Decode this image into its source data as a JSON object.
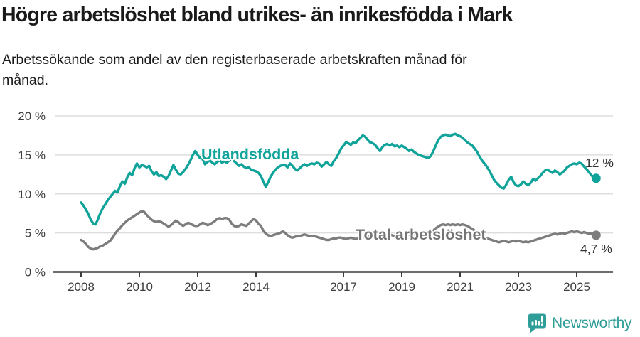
{
  "colors": {
    "teal": "#10A39A",
    "gray": "#7D7D7D",
    "axis": "#3D3D3D",
    "grid": "#DEDEDE",
    "title_text": "#1A1A1A",
    "annotation_text": "#333333",
    "logo_teal": "#2F9E98",
    "background": "#FFFFFF"
  },
  "chart_data": {
    "type": "line",
    "title": "Högre arbetslöshet bland utrikes- än inrikesfödda i Mark",
    "subtitle": "Arbetssökande som andel av den registerbaserade arbetskraften månad för månad.",
    "xlabel": "",
    "ylabel": "",
    "unit": "%",
    "grid": true,
    "ylim": [
      0,
      20
    ],
    "xlim_years": [
      2007.1,
      2026.3
    ],
    "y_ticks": [
      {
        "value": 0,
        "label": "0 %"
      },
      {
        "value": 5,
        "label": "5 %"
      },
      {
        "value": 10,
        "label": "10 %"
      },
      {
        "value": 15,
        "label": "15 %"
      },
      {
        "value": 20,
        "label": "20 %"
      }
    ],
    "x_ticks": [
      {
        "value": 2008,
        "label": "2008"
      },
      {
        "value": 2010,
        "label": "2010"
      },
      {
        "value": 2012,
        "label": "2012"
      },
      {
        "value": 2014,
        "label": "2014"
      },
      {
        "value": 2017,
        "label": "2017"
      },
      {
        "value": 2019,
        "label": "2019"
      },
      {
        "value": 2021,
        "label": "2021"
      },
      {
        "value": 2023,
        "label": "2023"
      },
      {
        "value": 2025,
        "label": "2025"
      }
    ],
    "series": [
      {
        "id": "utlandsfodda",
        "name": "Utlandsfödda",
        "color": "#10A39A",
        "start_year": 2008,
        "points_per_year": 12,
        "end_label": "12 %",
        "end_value": 12.0,
        "values": [
          8.9,
          8.5,
          8.0,
          7.4,
          6.7,
          6.2,
          6.1,
          6.8,
          7.6,
          8.2,
          8.7,
          9.2,
          9.6,
          10.0,
          10.4,
          10.2,
          11.0,
          11.6,
          11.3,
          12.1,
          12.7,
          12.4,
          13.3,
          13.9,
          13.4,
          13.7,
          13.6,
          13.4,
          13.6,
          12.9,
          12.5,
          12.8,
          12.3,
          12.4,
          12.2,
          11.9,
          12.3,
          13.0,
          13.7,
          13.1,
          12.6,
          12.5,
          12.8,
          13.2,
          13.7,
          14.3,
          15.0,
          15.5,
          15.0,
          14.6,
          14.5,
          13.8,
          14.1,
          14.3,
          14.0,
          13.8,
          14.1,
          14.3,
          14.0,
          14.2,
          14.0,
          14.3,
          14.5,
          14.2,
          13.9,
          13.6,
          13.8,
          13.5,
          13.3,
          13.4,
          13.1,
          13.0,
          12.9,
          12.7,
          12.3,
          11.6,
          10.9,
          11.5,
          12.2,
          12.7,
          13.1,
          13.4,
          13.6,
          13.7,
          13.7,
          13.4,
          13.9,
          13.6,
          13.2,
          13.0,
          13.3,
          13.6,
          13.8,
          13.6,
          13.8,
          13.9,
          13.8,
          14.0,
          13.9,
          13.5,
          13.8,
          14.1,
          13.8,
          13.6,
          14.2,
          14.6,
          15.2,
          15.8,
          16.2,
          16.6,
          16.5,
          16.3,
          16.6,
          16.5,
          16.9,
          17.2,
          17.5,
          17.3,
          16.9,
          16.6,
          16.5,
          16.3,
          15.9,
          15.5,
          16.0,
          16.3,
          16.4,
          16.2,
          16.4,
          16.1,
          16.2,
          16.0,
          16.2,
          16.0,
          15.8,
          15.5,
          15.7,
          15.4,
          15.2,
          15.0,
          14.9,
          14.8,
          14.7,
          14.6,
          14.9,
          15.5,
          16.2,
          16.9,
          17.3,
          17.5,
          17.6,
          17.5,
          17.4,
          17.6,
          17.7,
          17.5,
          17.4,
          17.2,
          16.9,
          16.6,
          16.4,
          16.2,
          15.8,
          15.4,
          14.8,
          14.3,
          13.9,
          13.5,
          13.0,
          12.4,
          11.8,
          11.4,
          11.1,
          10.8,
          10.7,
          11.2,
          11.8,
          12.2,
          11.5,
          11.1,
          11.0,
          11.2,
          11.6,
          11.3,
          11.1,
          11.4,
          11.9,
          11.7,
          12.0,
          12.3,
          12.7,
          13.0,
          13.1,
          12.9,
          12.7,
          13.0,
          12.8,
          12.5,
          12.7,
          13.0,
          13.4,
          13.6,
          13.8,
          13.9,
          13.8,
          14.0,
          13.9,
          13.5,
          13.2,
          12.8,
          12.4,
          12.1,
          12.0
        ]
      },
      {
        "id": "total",
        "name": "Total arbetslöshet",
        "color": "#7D7D7D",
        "start_year": 2008,
        "points_per_year": 12,
        "end_label": "4,7 %",
        "end_value": 4.7,
        "values": [
          4.1,
          3.9,
          3.6,
          3.2,
          3.0,
          2.9,
          3.0,
          3.1,
          3.3,
          3.4,
          3.6,
          3.8,
          4.0,
          4.4,
          4.9,
          5.3,
          5.6,
          6.0,
          6.3,
          6.6,
          6.8,
          7.0,
          7.2,
          7.4,
          7.6,
          7.8,
          7.7,
          7.3,
          7.0,
          6.7,
          6.5,
          6.4,
          6.5,
          6.4,
          6.2,
          6.0,
          5.8,
          6.0,
          6.3,
          6.6,
          6.4,
          6.1,
          5.9,
          6.1,
          6.3,
          6.2,
          6.0,
          5.9,
          5.9,
          6.1,
          6.3,
          6.2,
          6.0,
          6.1,
          6.3,
          6.5,
          6.8,
          6.9,
          6.8,
          6.9,
          6.9,
          6.7,
          6.2,
          5.9,
          5.8,
          5.9,
          6.1,
          6.0,
          5.9,
          6.2,
          6.5,
          6.8,
          6.6,
          6.2,
          5.9,
          5.3,
          4.9,
          4.7,
          4.6,
          4.7,
          4.8,
          4.9,
          5.0,
          5.2,
          5.0,
          4.7,
          4.5,
          4.4,
          4.5,
          4.6,
          4.6,
          4.7,
          4.8,
          4.7,
          4.6,
          4.6,
          4.6,
          4.5,
          4.4,
          4.3,
          4.2,
          4.1,
          4.1,
          4.2,
          4.3,
          4.3,
          4.4,
          4.4,
          4.3,
          4.2,
          4.3,
          4.4,
          4.3,
          4.2,
          4.3,
          4.4,
          4.5,
          4.4,
          4.5,
          4.6,
          4.5,
          4.6,
          4.7,
          4.6,
          4.5,
          4.6,
          4.7,
          4.8,
          4.7,
          4.6,
          4.7,
          4.8,
          4.7,
          4.8,
          4.9,
          4.8,
          4.7,
          4.8,
          4.9,
          4.8,
          4.7,
          4.8,
          4.9,
          5.0,
          5.1,
          5.3,
          5.6,
          5.8,
          6.0,
          6.1,
          6.0,
          6.1,
          6.0,
          6.1,
          6.0,
          6.1,
          6.0,
          6.1,
          6.0,
          5.9,
          5.7,
          5.5,
          5.3,
          5.1,
          4.9,
          4.7,
          4.5,
          4.3,
          4.2,
          4.1,
          4.0,
          3.9,
          3.8,
          3.9,
          4.0,
          3.9,
          3.8,
          3.9,
          4.0,
          3.9,
          4.0,
          3.9,
          3.8,
          3.9,
          3.8,
          3.9,
          4.0,
          4.1,
          4.2,
          4.3,
          4.4,
          4.5,
          4.6,
          4.7,
          4.8,
          4.9,
          4.8,
          4.9,
          5.0,
          4.9,
          5.0,
          5.1,
          5.2,
          5.1,
          5.2,
          5.1,
          5.0,
          5.1,
          5.0,
          4.9,
          4.9,
          4.8,
          4.7
        ]
      }
    ]
  },
  "footer": {
    "brand": "Newsworthy"
  }
}
